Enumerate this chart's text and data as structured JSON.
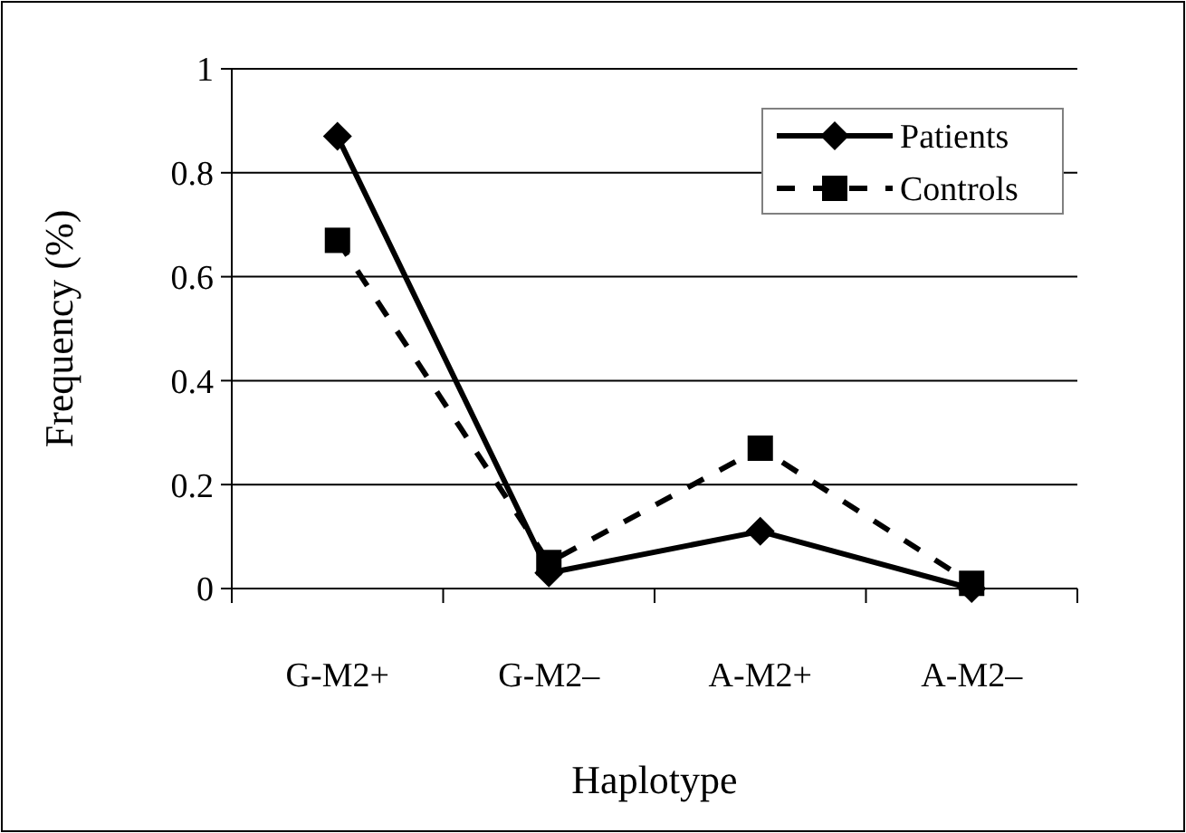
{
  "chart_data": {
    "type": "line",
    "xlabel": "Haplotype",
    "ylabel": "Frequency (%)",
    "categories": [
      "G-M2+",
      "G-M2–",
      "A-M2+",
      "A-M2–"
    ],
    "series": [
      {
        "name": "Patients",
        "color": "#000000",
        "values": [
          0.87,
          0.03,
          0.11,
          0.0
        ],
        "marker": "diamond",
        "line_style": "solid"
      },
      {
        "name": "Controls",
        "color": "#000000",
        "values": [
          0.67,
          0.05,
          0.27,
          0.01
        ],
        "marker": "square",
        "line_style": "dashed"
      }
    ],
    "ylim": [
      0,
      1
    ],
    "yticks": [
      0,
      0.2,
      0.4,
      0.6,
      0.8,
      1
    ],
    "grid": "y",
    "legend": "top right"
  }
}
